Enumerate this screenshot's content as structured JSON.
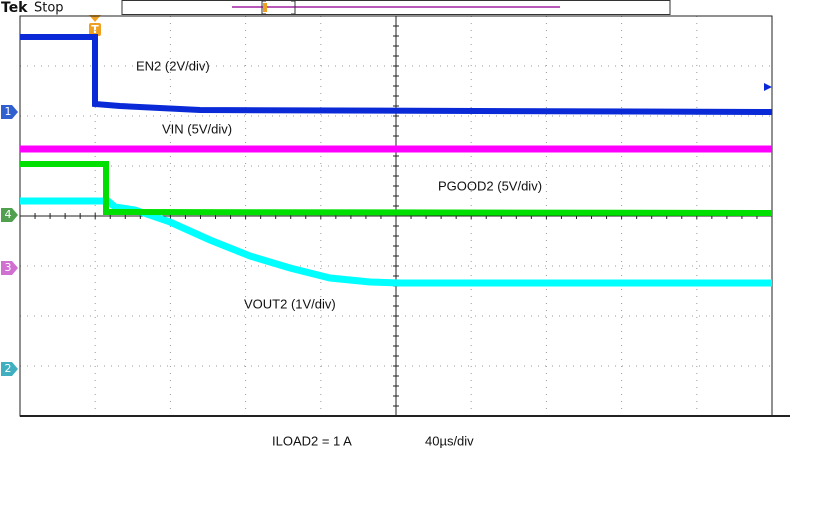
{
  "header": {
    "brand": "Tek",
    "status": "Stop",
    "trigger_marker": "T"
  },
  "channel_markers": [
    "1",
    "4",
    "3",
    "2"
  ],
  "traces": [
    {
      "label": "EN2 (2V/div)"
    },
    {
      "label": "VIN (5V/div)"
    },
    {
      "label": "PGOOD2 (5V/div)"
    },
    {
      "label": "VOUT2 (1V/div)"
    }
  ],
  "footer": {
    "load": "ILOAD2 = 1 A",
    "timebase": "40µs/div"
  }
}
